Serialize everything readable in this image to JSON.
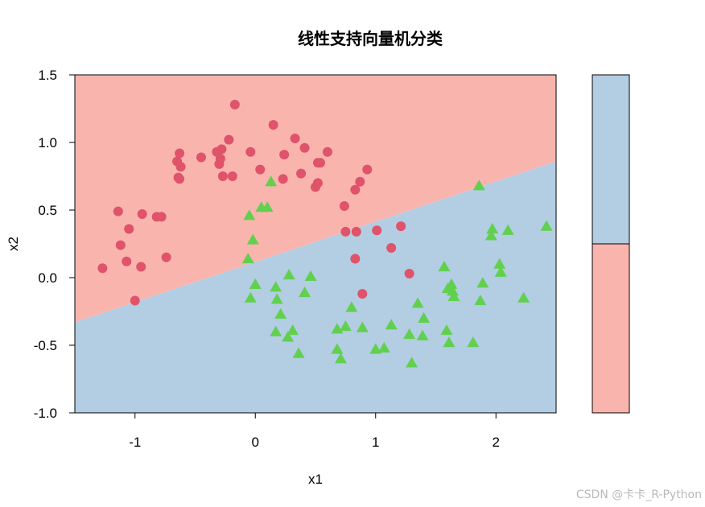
{
  "chart_data": {
    "type": "scatter",
    "title": "线性支持向量机分类",
    "xlabel": "x1",
    "ylabel": "x2",
    "xlim": [
      -1.5,
      2.5
    ],
    "ylim": [
      -1.0,
      1.5
    ],
    "x_ticks": [
      -1,
      0,
      1,
      2
    ],
    "x_tick_labels": [
      "-1",
      "0",
      "1",
      "2"
    ],
    "y_ticks": [
      -1.0,
      -0.5,
      0.0,
      0.5,
      1.0,
      1.5
    ],
    "y_tick_labels": [
      "-1.0",
      "-0.5",
      "0.0",
      "0.5",
      "1.0",
      "1.5"
    ],
    "decision_boundary": {
      "x": [
        -1.5,
        2.5
      ],
      "y": [
        -0.33,
        0.86
      ]
    },
    "regions": {
      "upper_color": "#fab4ae",
      "lower_color": "#b3cde3"
    },
    "legend_colors": [
      "#b3cde3",
      "#fab4ae"
    ],
    "series": [
      {
        "marker": "circle",
        "color": "#df536b",
        "points": [
          [
            -1.27,
            0.07
          ],
          [
            -1.14,
            0.49
          ],
          [
            -1.12,
            0.24
          ],
          [
            -1.07,
            0.12
          ],
          [
            -1.05,
            0.36
          ],
          [
            -1.0,
            -0.17
          ],
          [
            -0.95,
            0.08
          ],
          [
            -0.94,
            0.47
          ],
          [
            -0.82,
            0.45
          ],
          [
            -0.78,
            0.45
          ],
          [
            -0.74,
            0.15
          ],
          [
            -0.65,
            0.86
          ],
          [
            -0.64,
            0.74
          ],
          [
            -0.63,
            0.92
          ],
          [
            -0.63,
            0.73
          ],
          [
            -0.62,
            0.82
          ],
          [
            -0.45,
            0.89
          ],
          [
            -0.32,
            0.93
          ],
          [
            -0.3,
            0.84
          ],
          [
            -0.29,
            0.88
          ],
          [
            -0.28,
            0.95
          ],
          [
            -0.27,
            0.75
          ],
          [
            -0.22,
            1.02
          ],
          [
            -0.19,
            0.75
          ],
          [
            -0.17,
            1.28
          ],
          [
            -0.04,
            0.93
          ],
          [
            0.04,
            0.8
          ],
          [
            0.15,
            1.13
          ],
          [
            0.23,
            0.73
          ],
          [
            0.24,
            0.91
          ],
          [
            0.33,
            1.03
          ],
          [
            0.38,
            0.77
          ],
          [
            0.41,
            0.96
          ],
          [
            0.5,
            0.67
          ],
          [
            0.52,
            0.7
          ],
          [
            0.52,
            0.85
          ],
          [
            0.54,
            0.85
          ],
          [
            0.6,
            0.93
          ],
          [
            0.74,
            0.53
          ],
          [
            0.75,
            0.34
          ],
          [
            0.83,
            0.14
          ],
          [
            0.83,
            0.65
          ],
          [
            0.84,
            0.34
          ],
          [
            0.87,
            0.71
          ],
          [
            0.89,
            -0.12
          ],
          [
            0.93,
            0.8
          ],
          [
            1.01,
            0.35
          ],
          [
            1.13,
            0.22
          ],
          [
            1.21,
            0.38
          ],
          [
            1.28,
            0.03
          ]
        ]
      },
      {
        "marker": "triangle",
        "color": "#61d04f",
        "points": [
          [
            -0.06,
            0.14
          ],
          [
            -0.05,
            0.46
          ],
          [
            -0.04,
            -0.15
          ],
          [
            -0.02,
            0.28
          ],
          [
            0.0,
            -0.05
          ],
          [
            0.05,
            0.52
          ],
          [
            0.1,
            0.52
          ],
          [
            0.13,
            0.71
          ],
          [
            0.17,
            -0.07
          ],
          [
            0.17,
            -0.4
          ],
          [
            0.18,
            -0.16
          ],
          [
            0.21,
            -0.27
          ],
          [
            0.27,
            -0.44
          ],
          [
            0.28,
            0.02
          ],
          [
            0.31,
            -0.39
          ],
          [
            0.36,
            -0.56
          ],
          [
            0.41,
            -0.11
          ],
          [
            0.46,
            0.01
          ],
          [
            0.68,
            -0.38
          ],
          [
            0.68,
            -0.53
          ],
          [
            0.71,
            -0.6
          ],
          [
            0.75,
            -0.36
          ],
          [
            0.8,
            -0.22
          ],
          [
            0.89,
            -0.37
          ],
          [
            1.0,
            -0.53
          ],
          [
            1.07,
            -0.52
          ],
          [
            1.13,
            -0.35
          ],
          [
            1.28,
            -0.42
          ],
          [
            1.3,
            -0.63
          ],
          [
            1.35,
            -0.19
          ],
          [
            1.39,
            -0.43
          ],
          [
            1.4,
            -0.3
          ],
          [
            1.57,
            0.08
          ],
          [
            1.59,
            -0.39
          ],
          [
            1.6,
            -0.08
          ],
          [
            1.61,
            -0.48
          ],
          [
            1.63,
            -0.05
          ],
          [
            1.64,
            -0.1
          ],
          [
            1.65,
            -0.14
          ],
          [
            1.81,
            -0.48
          ],
          [
            1.86,
            0.68
          ],
          [
            1.87,
            -0.17
          ],
          [
            1.89,
            -0.04
          ],
          [
            1.96,
            0.31
          ],
          [
            1.97,
            0.36
          ],
          [
            2.03,
            0.1
          ],
          [
            2.04,
            0.04
          ],
          [
            2.1,
            0.35
          ],
          [
            2.23,
            -0.15
          ],
          [
            2.42,
            0.38
          ]
        ]
      }
    ]
  },
  "watermark": "CSDN @卡卡_R-Python"
}
